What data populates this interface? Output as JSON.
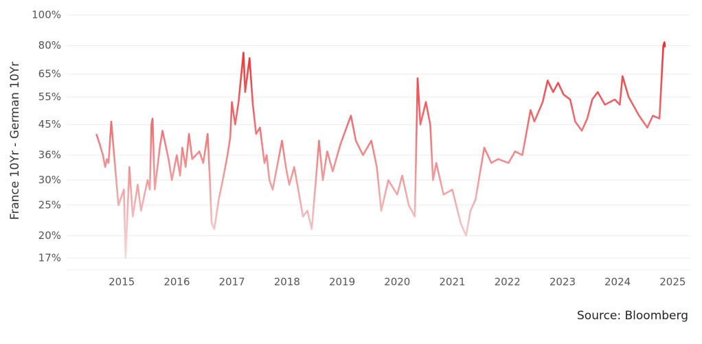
{
  "chart_data": {
    "type": "line",
    "y_label": "France 10Yr - German 10Yr",
    "source": "Source: Bloomberg",
    "log_scale": true,
    "grid": true,
    "colors": [
      "#f4e4e4",
      "#ea1519"
    ],
    "xlim": [
      2014.0,
      2025.32
    ],
    "xticks": [
      2015,
      2016,
      2017,
      2018,
      2019,
      2020,
      2021,
      2022,
      2023,
      2024,
      2025
    ],
    "ylim": [
      15.6,
      104
    ],
    "yticks": [
      {
        "value": 17,
        "label": "17%"
      },
      {
        "value": 20,
        "label": "20%"
      },
      {
        "value": 25,
        "label": "25%"
      },
      {
        "value": 30,
        "label": "30%"
      },
      {
        "value": 36,
        "label": "36%"
      },
      {
        "value": 45,
        "label": "45%"
      },
      {
        "value": 55,
        "label": "55%"
      },
      {
        "value": 65,
        "label": "65%"
      },
      {
        "value": 80,
        "label": "80%"
      },
      {
        "value": 100,
        "label": "100%"
      }
    ],
    "x": [
      2014.54,
      2014.6,
      2014.66,
      2014.7,
      2014.73,
      2014.76,
      2014.81,
      2014.94,
      2015.04,
      2015.07,
      2015.14,
      2015.2,
      2015.29,
      2015.35,
      2015.47,
      2015.51,
      2015.54,
      2015.56,
      2015.6,
      2015.69,
      2015.74,
      2015.85,
      2015.91,
      2016.0,
      2016.06,
      2016.1,
      2016.16,
      2016.22,
      2016.28,
      2016.41,
      2016.48,
      2016.56,
      2016.6,
      2016.63,
      2016.68,
      2016.76,
      2016.85,
      2016.92,
      2016.97,
      2017.0,
      2017.06,
      2017.12,
      2017.21,
      2017.24,
      2017.32,
      2017.38,
      2017.44,
      2017.51,
      2017.59,
      2017.63,
      2017.68,
      2017.74,
      2017.91,
      2017.98,
      2018.04,
      2018.13,
      2018.22,
      2018.29,
      2018.37,
      2018.45,
      2018.53,
      2018.58,
      2018.65,
      2018.73,
      2018.83,
      2018.97,
      2019.1,
      2019.16,
      2019.25,
      2019.38,
      2019.53,
      2019.63,
      2019.71,
      2019.84,
      2020.0,
      2020.09,
      2020.21,
      2020.32,
      2020.37,
      2020.42,
      2020.52,
      2020.6,
      2020.65,
      2020.71,
      2020.84,
      2021.0,
      2021.15,
      2021.25,
      2021.33,
      2021.42,
      2021.58,
      2021.71,
      2021.83,
      2022.02,
      2022.14,
      2022.27,
      2022.33,
      2022.42,
      2022.49,
      2022.64,
      2022.73,
      2022.83,
      2022.92,
      2023.02,
      2023.14,
      2023.23,
      2023.35,
      2023.45,
      2023.54,
      2023.64,
      2023.77,
      2023.95,
      2024.04,
      2024.09,
      2024.2,
      2024.39,
      2024.54,
      2024.64,
      2024.76,
      2024.83,
      2024.85,
      2024.86
    ],
    "series": [
      {
        "name": "France 10Yr - German 10Yr",
        "values": [
          42,
          39,
          36,
          33,
          35,
          34,
          46,
          25,
          28,
          17,
          33,
          23,
          29,
          24,
          30,
          28,
          45,
          47,
          28,
          38,
          43,
          35,
          30,
          36,
          31,
          38,
          33,
          42,
          35,
          37,
          34,
          42,
          30,
          22,
          21,
          26,
          31,
          36,
          41,
          53,
          45,
          53,
          76,
          57,
          73,
          52,
          42,
          44,
          34,
          36,
          30,
          28,
          40,
          33,
          29,
          33,
          27,
          23,
          24,
          21,
          31,
          40,
          30,
          37,
          32,
          39,
          45,
          48,
          40,
          36,
          40,
          33,
          24,
          30,
          27,
          31,
          25,
          23,
          63,
          45,
          53,
          45,
          30,
          34,
          27,
          28,
          22,
          20,
          24,
          26,
          38,
          34,
          35,
          34,
          37,
          36,
          41,
          50,
          46,
          53,
          62,
          57,
          61,
          56,
          54,
          46,
          43,
          47,
          54,
          57,
          52,
          54,
          52,
          64,
          55,
          48,
          44,
          48,
          47,
          80,
          82,
          79
        ]
      }
    ]
  }
}
